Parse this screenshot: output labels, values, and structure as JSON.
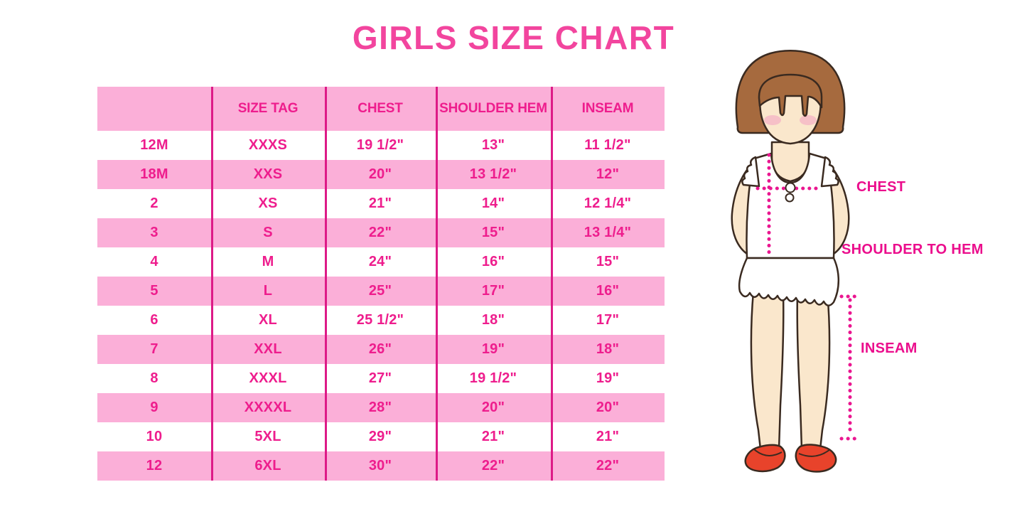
{
  "title": "GIRLS SIZE CHART",
  "chart_data": {
    "type": "table",
    "title": "GIRLS SIZE CHART",
    "columns": [
      "",
      "SIZE TAG",
      "CHEST",
      "SHOULDER HEM",
      "INSEAM"
    ],
    "rows": [
      [
        "12M",
        "XXXS",
        "19 1/2\"",
        "13\"",
        "11 1/2\""
      ],
      [
        "18M",
        "XXS",
        "20\"",
        "13 1/2\"",
        "12\""
      ],
      [
        "2",
        "XS",
        "21\"",
        "14\"",
        "12 1/4\""
      ],
      [
        "3",
        "S",
        "22\"",
        "15\"",
        "13 1/4\""
      ],
      [
        "4",
        "M",
        "24\"",
        "16\"",
        "15\""
      ],
      [
        "5",
        "L",
        "25\"",
        "17\"",
        "16\""
      ],
      [
        "6",
        "XL",
        "25 1/2\"",
        "18\"",
        "17\""
      ],
      [
        "7",
        "XXL",
        "26\"",
        "19\"",
        "18\""
      ],
      [
        "8",
        "XXXL",
        "27\"",
        "19 1/2\"",
        "19\""
      ],
      [
        "9",
        "XXXXL",
        "28\"",
        "20\"",
        "20\""
      ],
      [
        "10",
        "5XL",
        "29\"",
        "21\"",
        "21\""
      ],
      [
        "12",
        "6XL",
        "30\"",
        "22\"",
        "22\""
      ]
    ],
    "row_striping": "header pink, then alternating white/pink starting with white",
    "legend_position": "none",
    "grid": "vertical magenta column dividers only"
  },
  "figure": {
    "labels": {
      "chest": "CHEST",
      "shoulder_to_hem": "SHOULDER TO HEM",
      "inseam": "INSEAM"
    }
  },
  "colors": {
    "title_pink": "#F2459E",
    "table_text_magenta": "#EE1D8D",
    "row_pink": "#FBAFD8",
    "divider_magenta": "#DD1A87",
    "label_magenta": "#EB0D8C",
    "dotted_line_magenta": "#EA1690",
    "hair_brown": "#A66A3E",
    "skin": "#FAE7CC",
    "blush": "#F5B9C6",
    "shoe_red": "#E8432B",
    "illustration_outline": "#3A2A20",
    "background": "#FFFFFF"
  }
}
